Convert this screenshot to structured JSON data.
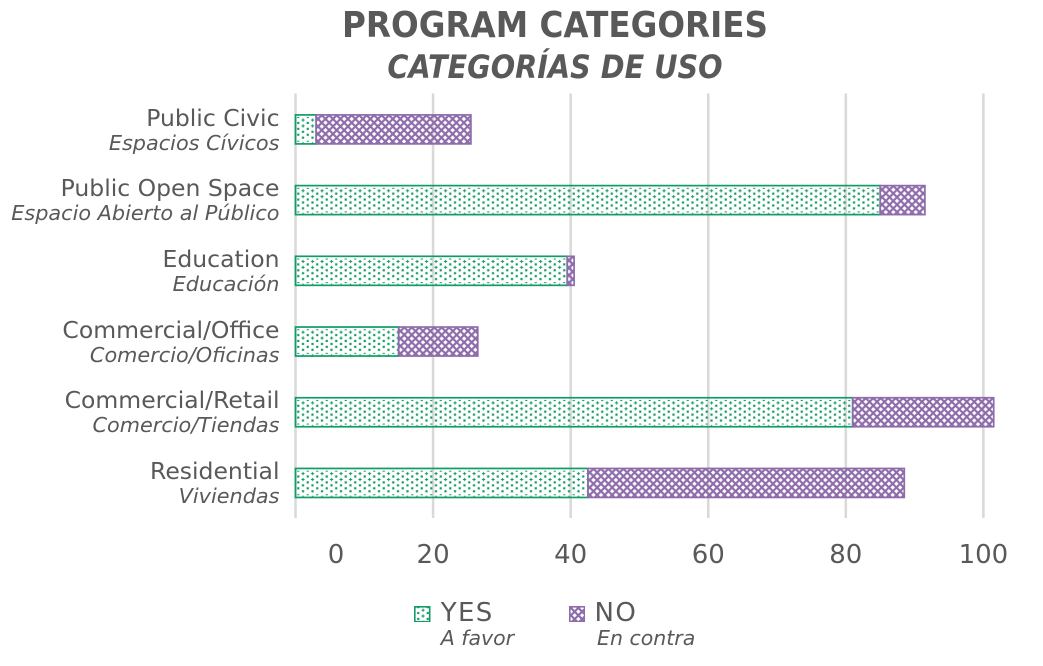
{
  "chart": {
    "title": "PROGRAM CATEGORIES",
    "subtitle": "CATEGORÍAS DE USO"
  },
  "chart_data": {
    "type": "bar",
    "orientation": "horizontal",
    "stacked": true,
    "title": "PROGRAM CATEGORIES",
    "subtitle": "CATEGORÍAS DE USO",
    "categories": [
      {
        "en": "Public Civic",
        "es": "Espacios Cívicos"
      },
      {
        "en": "Public Open Space",
        "es": "Espacio Abierto al Público"
      },
      {
        "en": "Education",
        "es": "Educación"
      },
      {
        "en": "Commercial/Office",
        "es": "Comercio/Oficinas"
      },
      {
        "en": "Commercial/Retail",
        "es": "Comercio/Tiendas"
      },
      {
        "en": "Residential",
        "es": "Viviendas"
      }
    ],
    "series": [
      {
        "name": "YES",
        "label_es": "A favor",
        "pattern": "dots",
        "color": "#109c64",
        "values": [
          3,
          85,
          39.5,
          15,
          81,
          42.5
        ]
      },
      {
        "name": "NO",
        "label_es": "En contra",
        "pattern": "crosshatch",
        "color": "#8e6cab",
        "values": [
          22.5,
          6.5,
          1,
          11.5,
          20.5,
          46
        ]
      }
    ],
    "xlabel": "",
    "ylabel": "",
    "xticks": [
      0,
      20,
      40,
      60,
      80,
      100
    ],
    "xlim": [
      0,
      103
    ],
    "grid": true,
    "gridline_color": "#d9d9d9",
    "text_color": "#595959",
    "legend_position": "bottom"
  }
}
